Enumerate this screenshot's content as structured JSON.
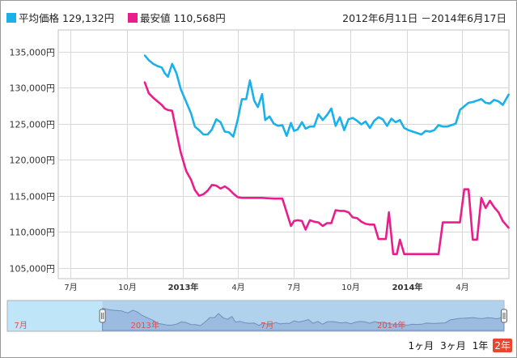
{
  "legend": {
    "avg_label": "平均価格",
    "avg_value": "129,132円",
    "min_label": "最安値",
    "min_value": "110,568円",
    "range_text": "2012年6月11日 －2014年6月17日"
  },
  "colors": {
    "avg": "#1ab1ea",
    "min": "#e91e8c",
    "navigator_fill": "#9bbbe0",
    "navigator_bg": "#bfe6f8",
    "zoom_active": "#e8462f"
  },
  "zoom_buttons": [
    {
      "label": "1ヶ月",
      "active": false
    },
    {
      "label": "3ヶ月",
      "active": false
    },
    {
      "label": "1年",
      "active": false
    },
    {
      "label": "2年",
      "active": true
    }
  ],
  "chart_data": {
    "type": "line",
    "title": "",
    "xlabel": "",
    "ylabel": "",
    "x_ticks": [
      {
        "label": "7月",
        "date": "2012-07-01",
        "bold": false
      },
      {
        "label": "10月",
        "date": "2012-10-01",
        "bold": false
      },
      {
        "label": "2013年",
        "date": "2013-01-01",
        "bold": true
      },
      {
        "label": "4月",
        "date": "2013-04-01",
        "bold": false
      },
      {
        "label": "7月",
        "date": "2013-07-01",
        "bold": false
      },
      {
        "label": "10月",
        "date": "2013-10-01",
        "bold": false
      },
      {
        "label": "2014年",
        "date": "2014-01-01",
        "bold": true
      },
      {
        "label": "4月",
        "date": "2014-04-01",
        "bold": false
      }
    ],
    "xlim": [
      "2012-06-11",
      "2014-06-17"
    ],
    "ylim": [
      103500,
      138000
    ],
    "y_ticks": [
      {
        "label": "105,000円",
        "value": 105000
      },
      {
        "label": "110,000円",
        "value": 110000
      },
      {
        "label": "115,000円",
        "value": 115000
      },
      {
        "label": "120,000円",
        "value": 120000
      },
      {
        "label": "125,000円",
        "value": 125000
      },
      {
        "label": "130,000円",
        "value": 130000
      },
      {
        "label": "135,000円",
        "value": 135000
      }
    ],
    "grid": true,
    "series": [
      {
        "name": "平均価格",
        "color": "#1ab1ea",
        "x": [
          "2012-10-30",
          "2012-11-06",
          "2012-11-13",
          "2012-11-20",
          "2012-11-27",
          "2012-12-02",
          "2012-12-07",
          "2012-12-14",
          "2012-12-21",
          "2012-12-28",
          "2013-01-06",
          "2013-01-14",
          "2013-01-20",
          "2013-01-27",
          "2013-02-03",
          "2013-02-10",
          "2013-02-17",
          "2013-02-24",
          "2013-03-03",
          "2013-03-10",
          "2013-03-17",
          "2013-03-24",
          "2013-03-31",
          "2013-04-07",
          "2013-04-14",
          "2013-04-20",
          "2013-04-27",
          "2013-05-03",
          "2013-05-10",
          "2013-05-15",
          "2013-05-22",
          "2013-05-29",
          "2013-06-05",
          "2013-06-12",
          "2013-06-19",
          "2013-06-26",
          "2013-07-01",
          "2013-07-07",
          "2013-07-14",
          "2013-07-20",
          "2013-07-27",
          "2013-08-03",
          "2013-08-10",
          "2013-08-17",
          "2013-08-24",
          "2013-08-31",
          "2013-09-07",
          "2013-09-14",
          "2013-09-21",
          "2013-09-28",
          "2013-10-05",
          "2013-10-12",
          "2013-10-19",
          "2013-10-26",
          "2013-11-02",
          "2013-11-09",
          "2013-11-16",
          "2013-11-23",
          "2013-11-30",
          "2013-12-07",
          "2013-12-14",
          "2013-12-21",
          "2013-12-28",
          "2014-01-04",
          "2014-01-11",
          "2014-01-18",
          "2014-01-25",
          "2014-02-01",
          "2014-02-08",
          "2014-02-15",
          "2014-02-22",
          "2014-03-01",
          "2014-03-08",
          "2014-03-15",
          "2014-03-22",
          "2014-03-29",
          "2014-04-05",
          "2014-04-12",
          "2014-04-19",
          "2014-04-26",
          "2014-05-03",
          "2014-05-10",
          "2014-05-17",
          "2014-05-24",
          "2014-05-31",
          "2014-06-07",
          "2014-06-17"
        ],
        "values": [
          134500,
          133800,
          133300,
          133000,
          132800,
          132000,
          131500,
          133300,
          132000,
          129800,
          128000,
          126400,
          124600,
          124100,
          123500,
          123500,
          124200,
          125600,
          125200,
          123900,
          123800,
          123200,
          125500,
          128400,
          128400,
          131000,
          128200,
          127300,
          129100,
          125500,
          126000,
          125000,
          124700,
          124800,
          123300,
          125100,
          124000,
          124200,
          125200,
          124300,
          124600,
          124600,
          126300,
          125500,
          126200,
          127100,
          124700,
          125900,
          124100,
          125600,
          125800,
          125400,
          124900,
          125300,
          124400,
          125400,
          125900,
          125600,
          124700,
          125700,
          125200,
          125500,
          124400,
          124100,
          123900,
          123700,
          123500,
          124000,
          123900,
          124100,
          124800,
          124600,
          124600,
          124800,
          125000,
          126900,
          127400,
          127900,
          128000,
          128200,
          128400,
          127900,
          127800,
          128300,
          128100,
          127600,
          129100
        ]
      },
      {
        "name": "最安値",
        "color": "#e91e8c",
        "x": [
          "2012-10-30",
          "2012-11-06",
          "2012-11-13",
          "2012-11-20",
          "2012-11-27",
          "2012-12-02",
          "2012-12-07",
          "2012-12-14",
          "2012-12-21",
          "2012-12-28",
          "2013-01-06",
          "2013-01-14",
          "2013-01-20",
          "2013-01-27",
          "2013-02-03",
          "2013-02-10",
          "2013-02-17",
          "2013-02-24",
          "2013-03-03",
          "2013-03-10",
          "2013-03-17",
          "2013-03-24",
          "2013-03-31",
          "2013-04-07",
          "2013-04-14",
          "2013-04-20",
          "2013-04-27",
          "2013-05-10",
          "2013-05-29",
          "2013-06-12",
          "2013-06-19",
          "2013-06-26",
          "2013-07-01",
          "2013-07-07",
          "2013-07-14",
          "2013-07-20",
          "2013-07-27",
          "2013-08-03",
          "2013-08-10",
          "2013-08-17",
          "2013-08-24",
          "2013-08-31",
          "2013-09-07",
          "2013-09-14",
          "2013-09-21",
          "2013-09-28",
          "2013-10-05",
          "2013-10-12",
          "2013-10-19",
          "2013-10-26",
          "2013-11-02",
          "2013-11-09",
          "2013-11-16",
          "2013-11-23",
          "2013-11-28",
          "2013-12-03",
          "2013-12-10",
          "2013-12-16",
          "2013-12-21",
          "2013-12-28",
          "2014-01-04",
          "2014-01-11",
          "2014-01-18",
          "2014-01-25",
          "2014-02-01",
          "2014-02-08",
          "2014-02-15",
          "2014-02-22",
          "2014-03-01",
          "2014-03-08",
          "2014-03-15",
          "2014-03-22",
          "2014-03-29",
          "2014-04-05",
          "2014-04-12",
          "2014-04-19",
          "2014-04-26",
          "2014-05-03",
          "2014-05-10",
          "2014-05-17",
          "2014-05-24",
          "2014-05-31",
          "2014-06-07",
          "2014-06-17"
        ],
        "values": [
          130800,
          129200,
          128600,
          128100,
          127600,
          127100,
          126900,
          126800,
          123800,
          121000,
          118400,
          117200,
          115800,
          115000,
          115200,
          115700,
          116500,
          116400,
          116000,
          116300,
          115900,
          115300,
          114800,
          114700,
          114700,
          114700,
          114700,
          114700,
          114600,
          114600,
          112700,
          110800,
          111500,
          111600,
          111500,
          110300,
          111600,
          111400,
          111300,
          110800,
          111200,
          111200,
          113000,
          112900,
          112900,
          112700,
          112000,
          111900,
          111400,
          111100,
          111000,
          111000,
          109000,
          109000,
          109000,
          112700,
          106900,
          106900,
          108900,
          106900,
          106900,
          106900,
          106900,
          106900,
          106900,
          106900,
          106900,
          106900,
          111300,
          111300,
          111300,
          111300,
          111300,
          115900,
          115900,
          108900,
          108900,
          114700,
          113300,
          114300,
          113400,
          112700,
          111500,
          110500
        ]
      }
    ]
  },
  "navigator": {
    "x_labels": [
      {
        "label": "7月",
        "date": "2012-07-01"
      },
      {
        "label": "2013年",
        "date": "2013-01-01"
      },
      {
        "label": "7月",
        "date": "2013-07-01"
      },
      {
        "label": "2014年",
        "date": "2014-01-01"
      }
    ],
    "selection_start": "2012-10-30",
    "selection_end": "2014-06-17"
  }
}
